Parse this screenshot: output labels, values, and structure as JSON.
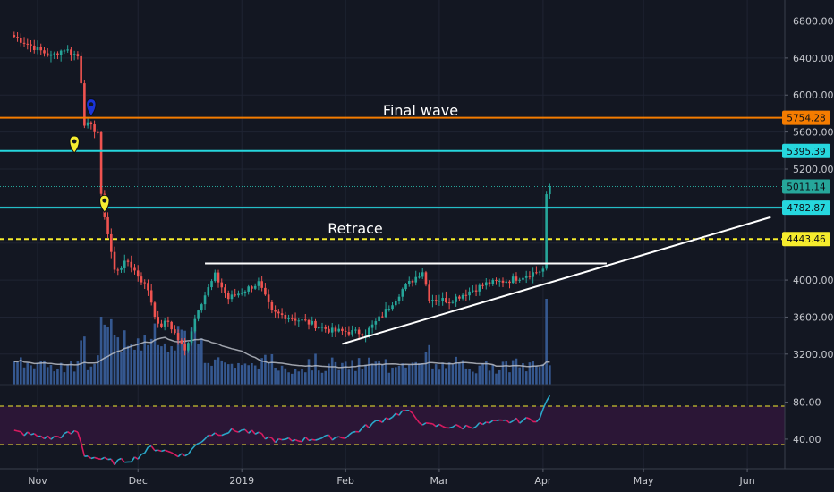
{
  "colors": {
    "background": "#131722",
    "grid": "#1f2433",
    "up": "#26a69a",
    "down": "#ef5350",
    "volume": "#3a5f9c",
    "volume_ma": "#b9bcc4",
    "rsi_line_up": "#2aa8c9",
    "rsi_line_down": "#d81b60",
    "rsi_band": "#2b1636",
    "orange_level": "#f57c00",
    "cyan_level": "#26d7de",
    "yellow_level": "#f6ec2d",
    "trendline": "#ffffff",
    "marker_yellow": "#f7ed2f",
    "marker_blue": "#1a34d8"
  },
  "annotations": {
    "final_wave": "Final wave",
    "retrace": "Retrace"
  },
  "chart_data": [
    {
      "type": "candlestick",
      "price_axis": {
        "ylim": [
          2850,
          6950
        ],
        "ticks": [
          "6800.00",
          "6400.00",
          "6000.00",
          "5600.00",
          "5200.00",
          "4000.00",
          "3600.00",
          "3200.00"
        ],
        "tick_values": [
          6800,
          6400,
          6000,
          5600,
          5200,
          4000,
          3600,
          3200
        ]
      },
      "time_axis": {
        "labels": [
          "Nov",
          "Dec",
          "2019",
          "Feb",
          "Mar",
          "Apr",
          "May",
          "Jun"
        ],
        "dates": [
          "2018-11-01",
          "2018-12-01",
          "2019-01-01",
          "2019-02-01",
          "2019-03-01",
          "2019-04-01",
          "2019-05-01",
          "2019-06-01"
        ]
      },
      "anchors": [
        [
          "2018-10-25",
          6630
        ],
        [
          "2018-11-05",
          6420
        ],
        [
          "2018-11-09",
          6500
        ],
        [
          "2018-11-13",
          6420
        ],
        [
          "2018-11-14",
          6150
        ],
        [
          "2018-11-15",
          5700
        ],
        [
          "2018-11-19",
          5600
        ],
        [
          "2018-11-20",
          4900
        ],
        [
          "2018-11-22",
          4500
        ],
        [
          "2018-11-24",
          4100
        ],
        [
          "2018-11-28",
          4200
        ],
        [
          "2018-12-04",
          3900
        ],
        [
          "2018-12-07",
          3500
        ],
        [
          "2018-12-10",
          3550
        ],
        [
          "2018-12-15",
          3230
        ],
        [
          "2018-12-19",
          3700
        ],
        [
          "2018-12-24",
          4050
        ],
        [
          "2018-12-28",
          3800
        ],
        [
          "2019-01-06",
          3970
        ],
        [
          "2019-01-10",
          3650
        ],
        [
          "2019-01-20",
          3550
        ],
        [
          "2019-01-28",
          3450
        ],
        [
          "2019-02-07",
          3430
        ],
        [
          "2019-02-12",
          3620
        ],
        [
          "2019-02-18",
          3900
        ],
        [
          "2019-02-24",
          4100
        ],
        [
          "2019-02-26",
          3800
        ],
        [
          "2019-03-04",
          3780
        ],
        [
          "2019-03-15",
          3960
        ],
        [
          "2019-03-22",
          4000
        ],
        [
          "2019-03-31",
          4100
        ],
        [
          "2019-04-01",
          4120
        ],
        [
          "2019-04-02",
          4900
        ],
        [
          "2019-04-03",
          5011
        ]
      ],
      "levels": [
        {
          "label": "5754.28",
          "value": 5754.28,
          "color": "#f57c00"
        },
        {
          "label": "5395.39",
          "value": 5395.39,
          "color": "#26d7de"
        },
        {
          "label": "5011.14",
          "value": 5011.14,
          "color": "#26a69a"
        },
        {
          "label": "4782.87",
          "value": 4782.87,
          "color": "#26d7de"
        },
        {
          "label": "4443.46",
          "value": 4443.46,
          "color": "#f6ec2d"
        }
      ],
      "trendlines": [
        {
          "from": [
            "2018-12-21",
            4180
          ],
          "to": [
            "2019-04-20",
            4180
          ]
        },
        {
          "from": [
            "2019-01-31",
            3310
          ],
          "to": [
            "2019-06-08",
            4680
          ]
        }
      ],
      "markers": [
        {
          "date": "2018-11-17",
          "price": 5880,
          "color": "#1a34d8"
        },
        {
          "date": "2018-11-12",
          "price": 5480,
          "color": "#f7ed2f"
        },
        {
          "date": "2018-11-21",
          "price": 4840,
          "color": "#f7ed2f"
        }
      ]
    },
    {
      "type": "bar",
      "name": "volume",
      "note": "volume histogram with moving average overlay"
    },
    {
      "type": "line",
      "name": "rsi",
      "ylim": [
        10,
        95
      ],
      "ticks": [
        "80.00",
        "40.00"
      ],
      "tick_values": [
        80,
        40
      ],
      "bands": [
        73,
        27
      ],
      "anchors": [
        [
          "2018-10-25",
          48
        ],
        [
          "2018-11-05",
          41
        ],
        [
          "2018-11-13",
          48
        ],
        [
          "2018-11-15",
          23
        ],
        [
          "2018-11-24",
          15
        ],
        [
          "2018-11-30",
          19
        ],
        [
          "2018-12-05",
          31
        ],
        [
          "2018-12-15",
          22
        ],
        [
          "2018-12-22",
          45
        ],
        [
          "2019-01-01",
          50
        ],
        [
          "2019-01-12",
          38
        ],
        [
          "2019-02-01",
          43
        ],
        [
          "2019-02-10",
          58
        ],
        [
          "2019-02-19",
          71
        ],
        [
          "2019-02-25",
          55
        ],
        [
          "2019-03-08",
          53
        ],
        [
          "2019-03-18",
          58
        ],
        [
          "2019-03-31",
          62
        ],
        [
          "2019-04-02",
          80
        ],
        [
          "2019-04-03",
          89
        ]
      ]
    }
  ]
}
